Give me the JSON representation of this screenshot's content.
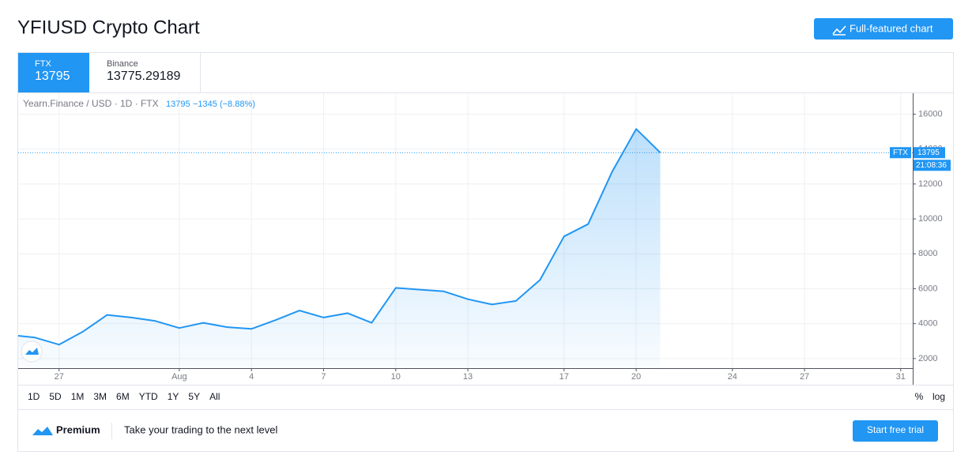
{
  "header": {
    "title": "YFIUSD Crypto Chart",
    "button": "Full-featured chart"
  },
  "tabs": [
    {
      "exchange": "FTX",
      "price": "13795"
    },
    {
      "exchange": "Binance",
      "price": "13775.29189"
    }
  ],
  "legend": {
    "symbol": "Yearn.Finance / USD · 1D · FTX",
    "price": "13795",
    "change": "−1345 (−8.88%)"
  },
  "chart_data": {
    "type": "area",
    "color": "#2196f3",
    "series": [
      {
        "name": "FTX",
        "color": "#2196f3",
        "x": [
          -6,
          -5,
          -4,
          -3,
          -2,
          -1,
          0,
          1,
          2,
          3,
          4,
          5,
          6,
          7,
          8,
          9,
          10,
          11,
          12,
          13,
          14,
          15,
          16,
          17,
          18,
          19,
          20,
          21
        ],
        "values": [
          3350,
          3200,
          2800,
          3550,
          4500,
          4350,
          4150,
          3750,
          4050,
          3800,
          3700,
          4200,
          4750,
          4350,
          4600,
          4050,
          6050,
          5950,
          5850,
          5400,
          5100,
          5300,
          6500,
          9000,
          9700,
          12700,
          15150,
          13795
        ]
      }
    ],
    "last_price": 13795,
    "last_time": "21:08:36",
    "xlim": [
      -5.7,
      31.5
    ],
    "xticks": [
      {
        "value": -4,
        "label": "27"
      },
      {
        "value": 1,
        "label": "Aug"
      },
      4,
      7,
      10,
      13,
      17,
      20,
      24,
      27,
      31
    ],
    "ylim": [
      1450,
      17200
    ],
    "yticks": [
      2000,
      4000,
      6000,
      8000,
      10000,
      12000,
      14000,
      16000
    ],
    "grid": true
  },
  "ranges": [
    "1D",
    "5D",
    "1M",
    "3M",
    "6M",
    "YTD",
    "1Y",
    "5Y",
    "All"
  ],
  "scale_options": [
    "%",
    "log"
  ],
  "footer": {
    "brand": "Premium",
    "text": "Take your trading to the next level",
    "button": "Start free trial"
  }
}
